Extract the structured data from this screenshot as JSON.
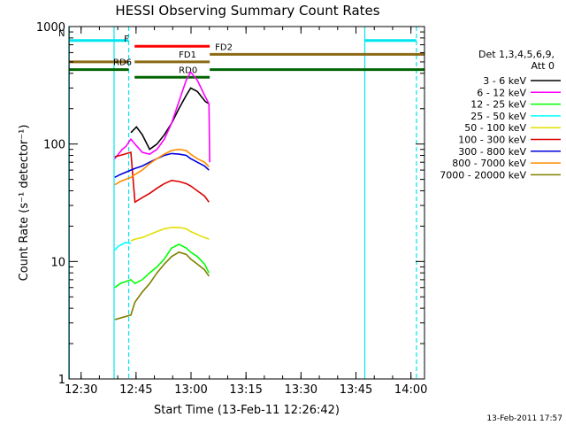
{
  "chart_data": {
    "type": "line",
    "title": "HESSI Observing Summary Count Rates",
    "xlabel": "Start Time (13-Feb-11 12:26:42)",
    "ylabel": "Count Rate (s⁻¹ detector⁻¹)",
    "x_unit": "minutes after 12:26:42",
    "x_range": [
      0,
      97
    ],
    "ylim": [
      1,
      1000
    ],
    "y_scale": "log",
    "x_tick_labels": [
      "12:30",
      "12:45",
      "13:00",
      "13:15",
      "13:30",
      "13:45",
      "14:00"
    ],
    "x_tick_values": [
      3.3,
      18.3,
      33.3,
      48.3,
      63.3,
      78.3,
      93.3
    ],
    "y_tick_labels": [
      "1",
      "10",
      "100",
      "1000"
    ],
    "y_tick_values": [
      1,
      10,
      100,
      1000
    ],
    "grid": false,
    "legend_position": "right",
    "legend_title_lines": [
      "Det 1,3,4,5,6,9,",
      "Att 0"
    ],
    "series": [
      {
        "name": "3 - 6 keV",
        "color": "#000000",
        "x": [
          16.9,
          18.4,
          20,
          22,
          24,
          26,
          28,
          30,
          32,
          33.2,
          35,
          37.2,
          38.2
        ],
        "y": [
          125,
          140,
          120,
          90,
          100,
          120,
          150,
          200,
          260,
          300,
          280,
          230,
          220
        ]
      },
      {
        "name": "6 - 12 keV",
        "color": "#ff00ff",
        "x": [
          12.5,
          13.5,
          14.5,
          15.5,
          16.9,
          18,
          20,
          22,
          24,
          26,
          28,
          30,
          32,
          33.2,
          35,
          37,
          38.2,
          38.4
        ],
        "y": [
          75,
          82,
          90,
          95,
          110,
          100,
          85,
          82,
          90,
          110,
          150,
          230,
          350,
          410,
          350,
          260,
          220,
          70
        ]
      },
      {
        "name": "12 - 25 keV",
        "color": "#00ff00",
        "x": [
          12.5,
          14,
          16.9,
          18,
          20,
          22,
          24,
          26,
          28,
          30,
          32,
          33.2,
          35,
          37,
          38.2
        ],
        "y": [
          6,
          6.5,
          7,
          6.5,
          7,
          8,
          9,
          10.5,
          13,
          14,
          13,
          12,
          11,
          9.5,
          8
        ]
      },
      {
        "name": "25 - 50 keV",
        "color": "#00ffff",
        "x": [
          12.5,
          13.5,
          14.5,
          15.5,
          16.9
        ],
        "y": [
          12.5,
          13.5,
          14,
          14.5,
          14.2
        ]
      },
      {
        "name": "50 - 100 keV",
        "color": "#e0e000",
        "x": [
          16.9,
          18,
          20,
          22,
          24,
          26,
          28,
          30,
          32,
          33.2,
          35,
          37,
          38.2
        ],
        "y": [
          15,
          15.5,
          16,
          17,
          18,
          19,
          19.5,
          19.5,
          19,
          18,
          17,
          16,
          15.5
        ]
      },
      {
        "name": "100 - 300 keV",
        "color": "#dd0000",
        "x": [
          12.5,
          14,
          16.9,
          18,
          20,
          22,
          24,
          26,
          28,
          30,
          32,
          33.2,
          35,
          37,
          38.2
        ],
        "y": [
          78,
          80,
          85,
          32,
          35,
          38,
          42,
          46,
          49,
          48,
          46,
          44,
          40,
          36,
          32
        ]
      },
      {
        "name": "300 - 800 keV",
        "color": "#0000dd",
        "x": [
          12.5,
          14,
          16.9,
          18,
          20,
          22,
          24,
          26,
          28,
          30,
          32,
          33.2,
          35,
          37,
          38.2
        ],
        "y": [
          52,
          55,
          60,
          62,
          65,
          70,
          75,
          80,
          83,
          82,
          80,
          75,
          70,
          65,
          60
        ]
      },
      {
        "name": "800 - 7000 keV",
        "color": "#ff8c00",
        "x": [
          12.5,
          14,
          16.9,
          18,
          20,
          22,
          24,
          26,
          28,
          30,
          32,
          33.2,
          35,
          37,
          38.2
        ],
        "y": [
          45,
          48,
          52,
          55,
          60,
          68,
          75,
          82,
          88,
          90,
          88,
          82,
          75,
          70,
          64
        ]
      },
      {
        "name": "7000 - 20000 keV",
        "color": "#808000",
        "x": [
          12.5,
          14,
          16.9,
          18,
          20,
          22,
          24,
          26,
          28,
          30,
          32,
          33.2,
          35,
          37,
          38.2
        ],
        "y": [
          3.2,
          3.3,
          3.5,
          4.5,
          5.5,
          6.5,
          8,
          9.5,
          11,
          12,
          11.5,
          10.5,
          9.5,
          8.5,
          7.5
        ]
      }
    ],
    "flag_bars": [
      {
        "label": "N",
        "color": "#00e5ee",
        "y": 760,
        "x_start": 0,
        "x_end": 16.3
      },
      {
        "label": "",
        "color": "#00e5ee",
        "y": 760,
        "x_start": 80.7,
        "x_end": 94.8
      },
      {
        "label": "F",
        "color": "#ff0000",
        "y": 680,
        "x_start": 17.9,
        "x_end": 38.4
      },
      {
        "label": "FD1",
        "color": "#8b6914",
        "y": 500,
        "x_start": 17.9,
        "x_end": 38.4
      },
      {
        "label": "",
        "color": "#8b6914",
        "y": 500,
        "x_start": 0,
        "x_end": 16.3
      },
      {
        "label": "FD2",
        "color": "#8b6914",
        "y": 580,
        "x_start": 38.4,
        "x_end": 97
      },
      {
        "label": "RD6",
        "color": "#006400",
        "y": 430,
        "x_start": 0,
        "x_end": 16.3
      },
      {
        "label": "RD0",
        "color": "#006400",
        "y": 370,
        "x_start": 17.9,
        "x_end": 38.4
      },
      {
        "label": "",
        "color": "#006400",
        "y": 430,
        "x_start": 38.4,
        "x_end": 97
      }
    ],
    "vertical_markers": [
      {
        "x": 0.1,
        "color": "#00e5ee",
        "style": "solid"
      },
      {
        "x": 12.3,
        "color": "#00e5ee",
        "style": "solid"
      },
      {
        "x": 16.3,
        "color": "#00e5ee",
        "style": "dashed"
      },
      {
        "x": 80.7,
        "color": "#00e5ee",
        "style": "solid"
      },
      {
        "x": 94.8,
        "color": "#00e5ee",
        "style": "dashed"
      }
    ],
    "timestamp": "13-Feb-2011 17:57"
  }
}
